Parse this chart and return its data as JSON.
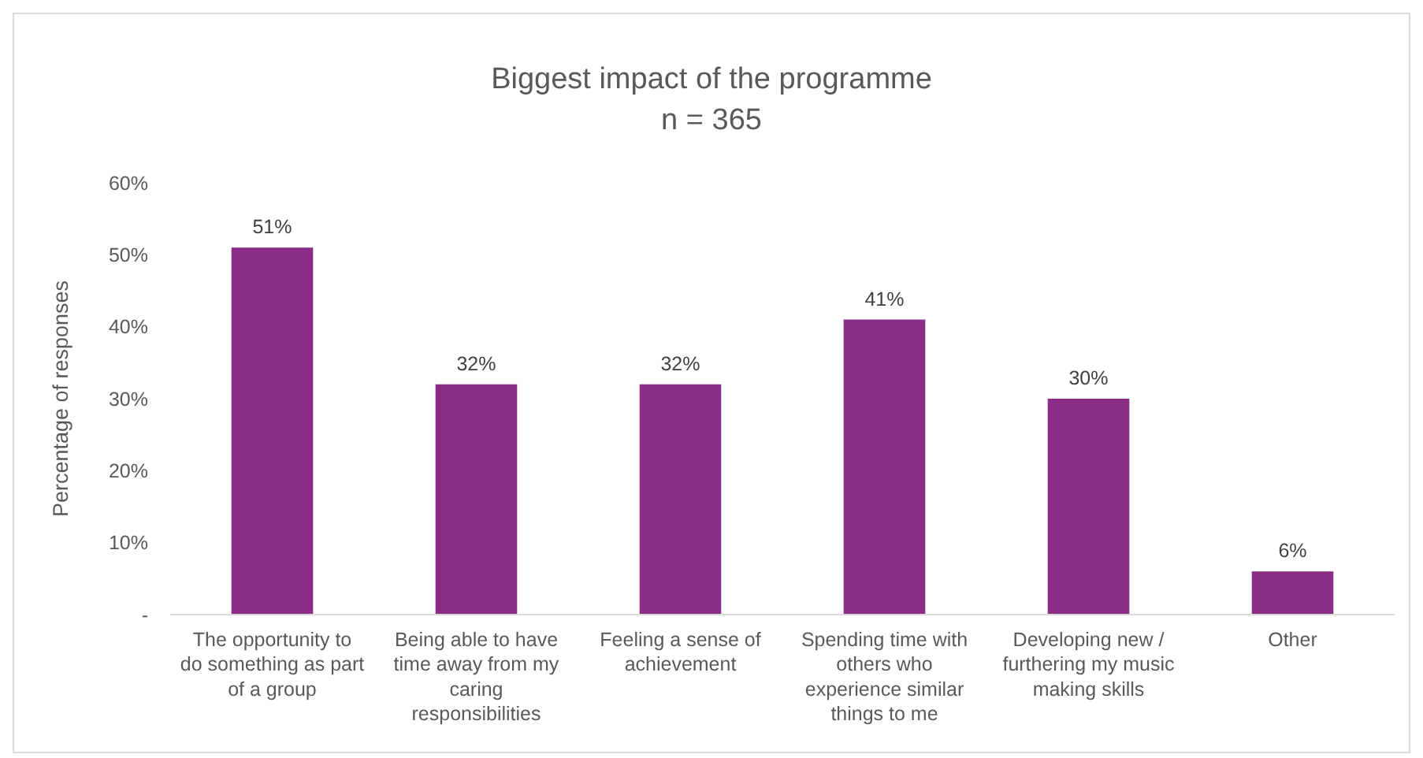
{
  "chart_data": {
    "type": "bar",
    "title": "Biggest impact of the programme",
    "subtitle": "n = 365",
    "ylabel": "Percentage of responses",
    "categories": [
      "The opportunity to do something as part of a group",
      "Being able to have time away from my caring responsibilities",
      "Feeling a sense of achievement",
      "Spending time with others who experience similar things to me",
      "Developing new / furthering my music making skills",
      "Other"
    ],
    "values": [
      51,
      32,
      32,
      41,
      30,
      6
    ],
    "color": "#8b2c87",
    "value_labels": [
      "51%",
      "32%",
      "32%",
      "41%",
      "30%",
      "6%"
    ],
    "ylim": [
      0,
      60
    ],
    "yticks": [
      {
        "value": 0,
        "label": "-"
      },
      {
        "value": 10,
        "label": "10%"
      },
      {
        "value": 20,
        "label": "20%"
      },
      {
        "value": 30,
        "label": "30%"
      },
      {
        "value": 40,
        "label": "40%"
      },
      {
        "value": 50,
        "label": "50%"
      },
      {
        "value": 60,
        "label": "60%"
      }
    ],
    "grid": false
  }
}
